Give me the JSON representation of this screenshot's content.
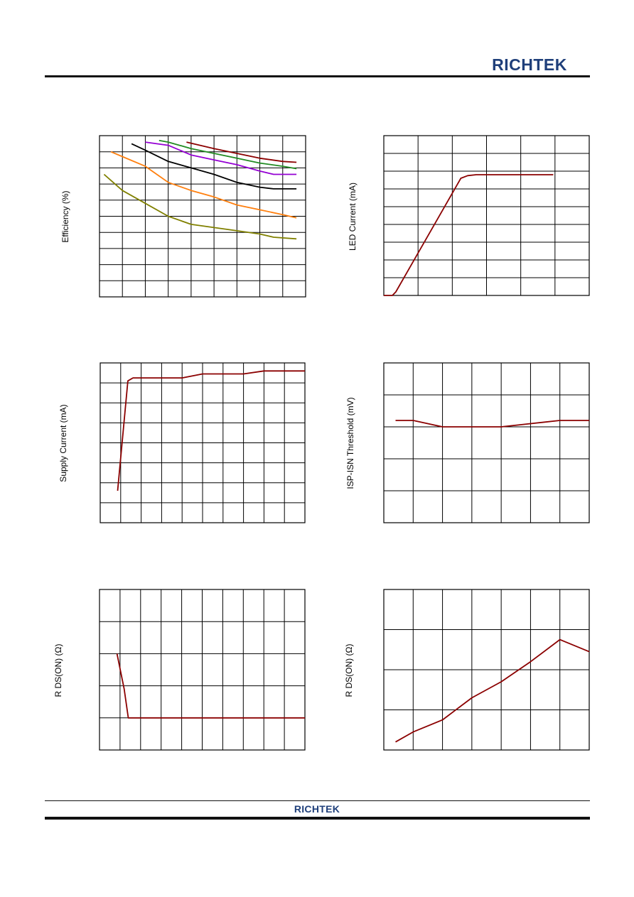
{
  "header": {
    "logo_text": "RICHTEK"
  },
  "footer": {
    "logo_text": "RICHTEK"
  },
  "chart_data": [
    {
      "type": "line",
      "ylabel": "Efficiency (%)",
      "grid": true,
      "xgrid": 9,
      "ygrid": 10,
      "xlim": [
        0,
        9
      ],
      "ylim": [
        0,
        10
      ],
      "series": [
        {
          "color": "#8b0000",
          "x": [
            3.8,
            5,
            6,
            7,
            8,
            8.6
          ],
          "y": [
            9.6,
            9.2,
            8.9,
            8.6,
            8.4,
            8.35
          ]
        },
        {
          "color": "#228b22",
          "x": [
            2.6,
            3,
            4,
            5,
            6,
            7,
            8,
            8.6
          ],
          "y": [
            9.7,
            9.6,
            9.2,
            8.9,
            8.6,
            8.3,
            8.1,
            7.95
          ]
        },
        {
          "color": "#9400d3",
          "x": [
            2,
            3,
            4,
            5,
            6,
            7,
            7.6,
            8.6
          ],
          "y": [
            9.6,
            9.4,
            8.8,
            8.5,
            8.2,
            7.8,
            7.6,
            7.6
          ]
        },
        {
          "color": "#000000",
          "x": [
            1.4,
            2,
            3,
            4,
            5,
            6,
            7,
            7.6,
            8.6
          ],
          "y": [
            9.5,
            9.1,
            8.4,
            8.0,
            7.6,
            7.1,
            6.8,
            6.7,
            6.7
          ]
        },
        {
          "color": "#ff7f0e",
          "x": [
            0.5,
            1,
            2,
            3,
            4,
            5,
            6,
            7,
            8,
            8.6
          ],
          "y": [
            9.0,
            8.7,
            8.1,
            7.1,
            6.6,
            6.2,
            5.7,
            5.4,
            5.1,
            4.9
          ]
        },
        {
          "color": "#808000",
          "x": [
            0.2,
            1,
            2,
            3,
            4,
            5,
            6,
            7,
            7.6,
            8.6
          ],
          "y": [
            7.6,
            6.6,
            5.8,
            5.0,
            4.5,
            4.3,
            4.1,
            3.9,
            3.7,
            3.6
          ]
        }
      ]
    },
    {
      "type": "line",
      "ylabel": "LED Current (mA)",
      "grid": true,
      "xgrid": 6,
      "ygrid": 9,
      "xlim": [
        0,
        6
      ],
      "ylim": [
        0,
        9
      ],
      "series": [
        {
          "color": "#8b0000",
          "x": [
            0,
            0.25,
            0.35,
            2.25,
            2.45,
            2.7,
            4.95
          ],
          "y": [
            0,
            0,
            0.2,
            6.6,
            6.75,
            6.8,
            6.8
          ]
        }
      ]
    },
    {
      "type": "line",
      "ylabel": "Supply Current (mA)",
      "grid": true,
      "xgrid": 10,
      "ygrid": 8,
      "xlim": [
        0,
        10
      ],
      "ylim": [
        0,
        8
      ],
      "series": [
        {
          "color": "#8b0000",
          "x": [
            0.85,
            1.35,
            1.6,
            4,
            5,
            7,
            8,
            10
          ],
          "y": [
            1.6,
            7.1,
            7.25,
            7.25,
            7.45,
            7.45,
            7.6,
            7.6
          ]
        }
      ]
    },
    {
      "type": "line",
      "ylabel": "ISP-ISN Threshold (mV)",
      "grid": true,
      "xgrid": 7,
      "ygrid": 5,
      "xlim": [
        0,
        7
      ],
      "ylim": [
        0,
        5
      ],
      "series": [
        {
          "color": "#8b0000",
          "x": [
            0.4,
            1,
            2,
            3,
            4,
            5,
            6,
            7
          ],
          "y": [
            3.2,
            3.2,
            3.0,
            3.0,
            3.0,
            3.1,
            3.2,
            3.2
          ]
        }
      ]
    },
    {
      "type": "line",
      "ylabel": "R DS(ON) (Ω)",
      "grid": true,
      "xgrid": 10,
      "ygrid": 5,
      "xlim": [
        0,
        10
      ],
      "ylim": [
        0,
        5
      ],
      "series": [
        {
          "color": "#8b0000",
          "x": [
            0.85,
            1.2,
            1.4,
            2,
            10
          ],
          "y": [
            3.0,
            1.9,
            1.0,
            1.0,
            1.0
          ]
        }
      ]
    },
    {
      "type": "line",
      "ylabel": "R DS(ON) (Ω)",
      "grid": true,
      "xgrid": 7,
      "ygrid": 4,
      "xlim": [
        0,
        7
      ],
      "ylim": [
        0,
        4
      ],
      "series": [
        {
          "color": "#8b0000",
          "x": [
            0.4,
            1,
            2,
            3,
            4,
            5,
            6,
            7
          ],
          "y": [
            0.2,
            0.45,
            0.75,
            1.3,
            1.7,
            2.2,
            2.75,
            2.45
          ]
        }
      ]
    }
  ]
}
